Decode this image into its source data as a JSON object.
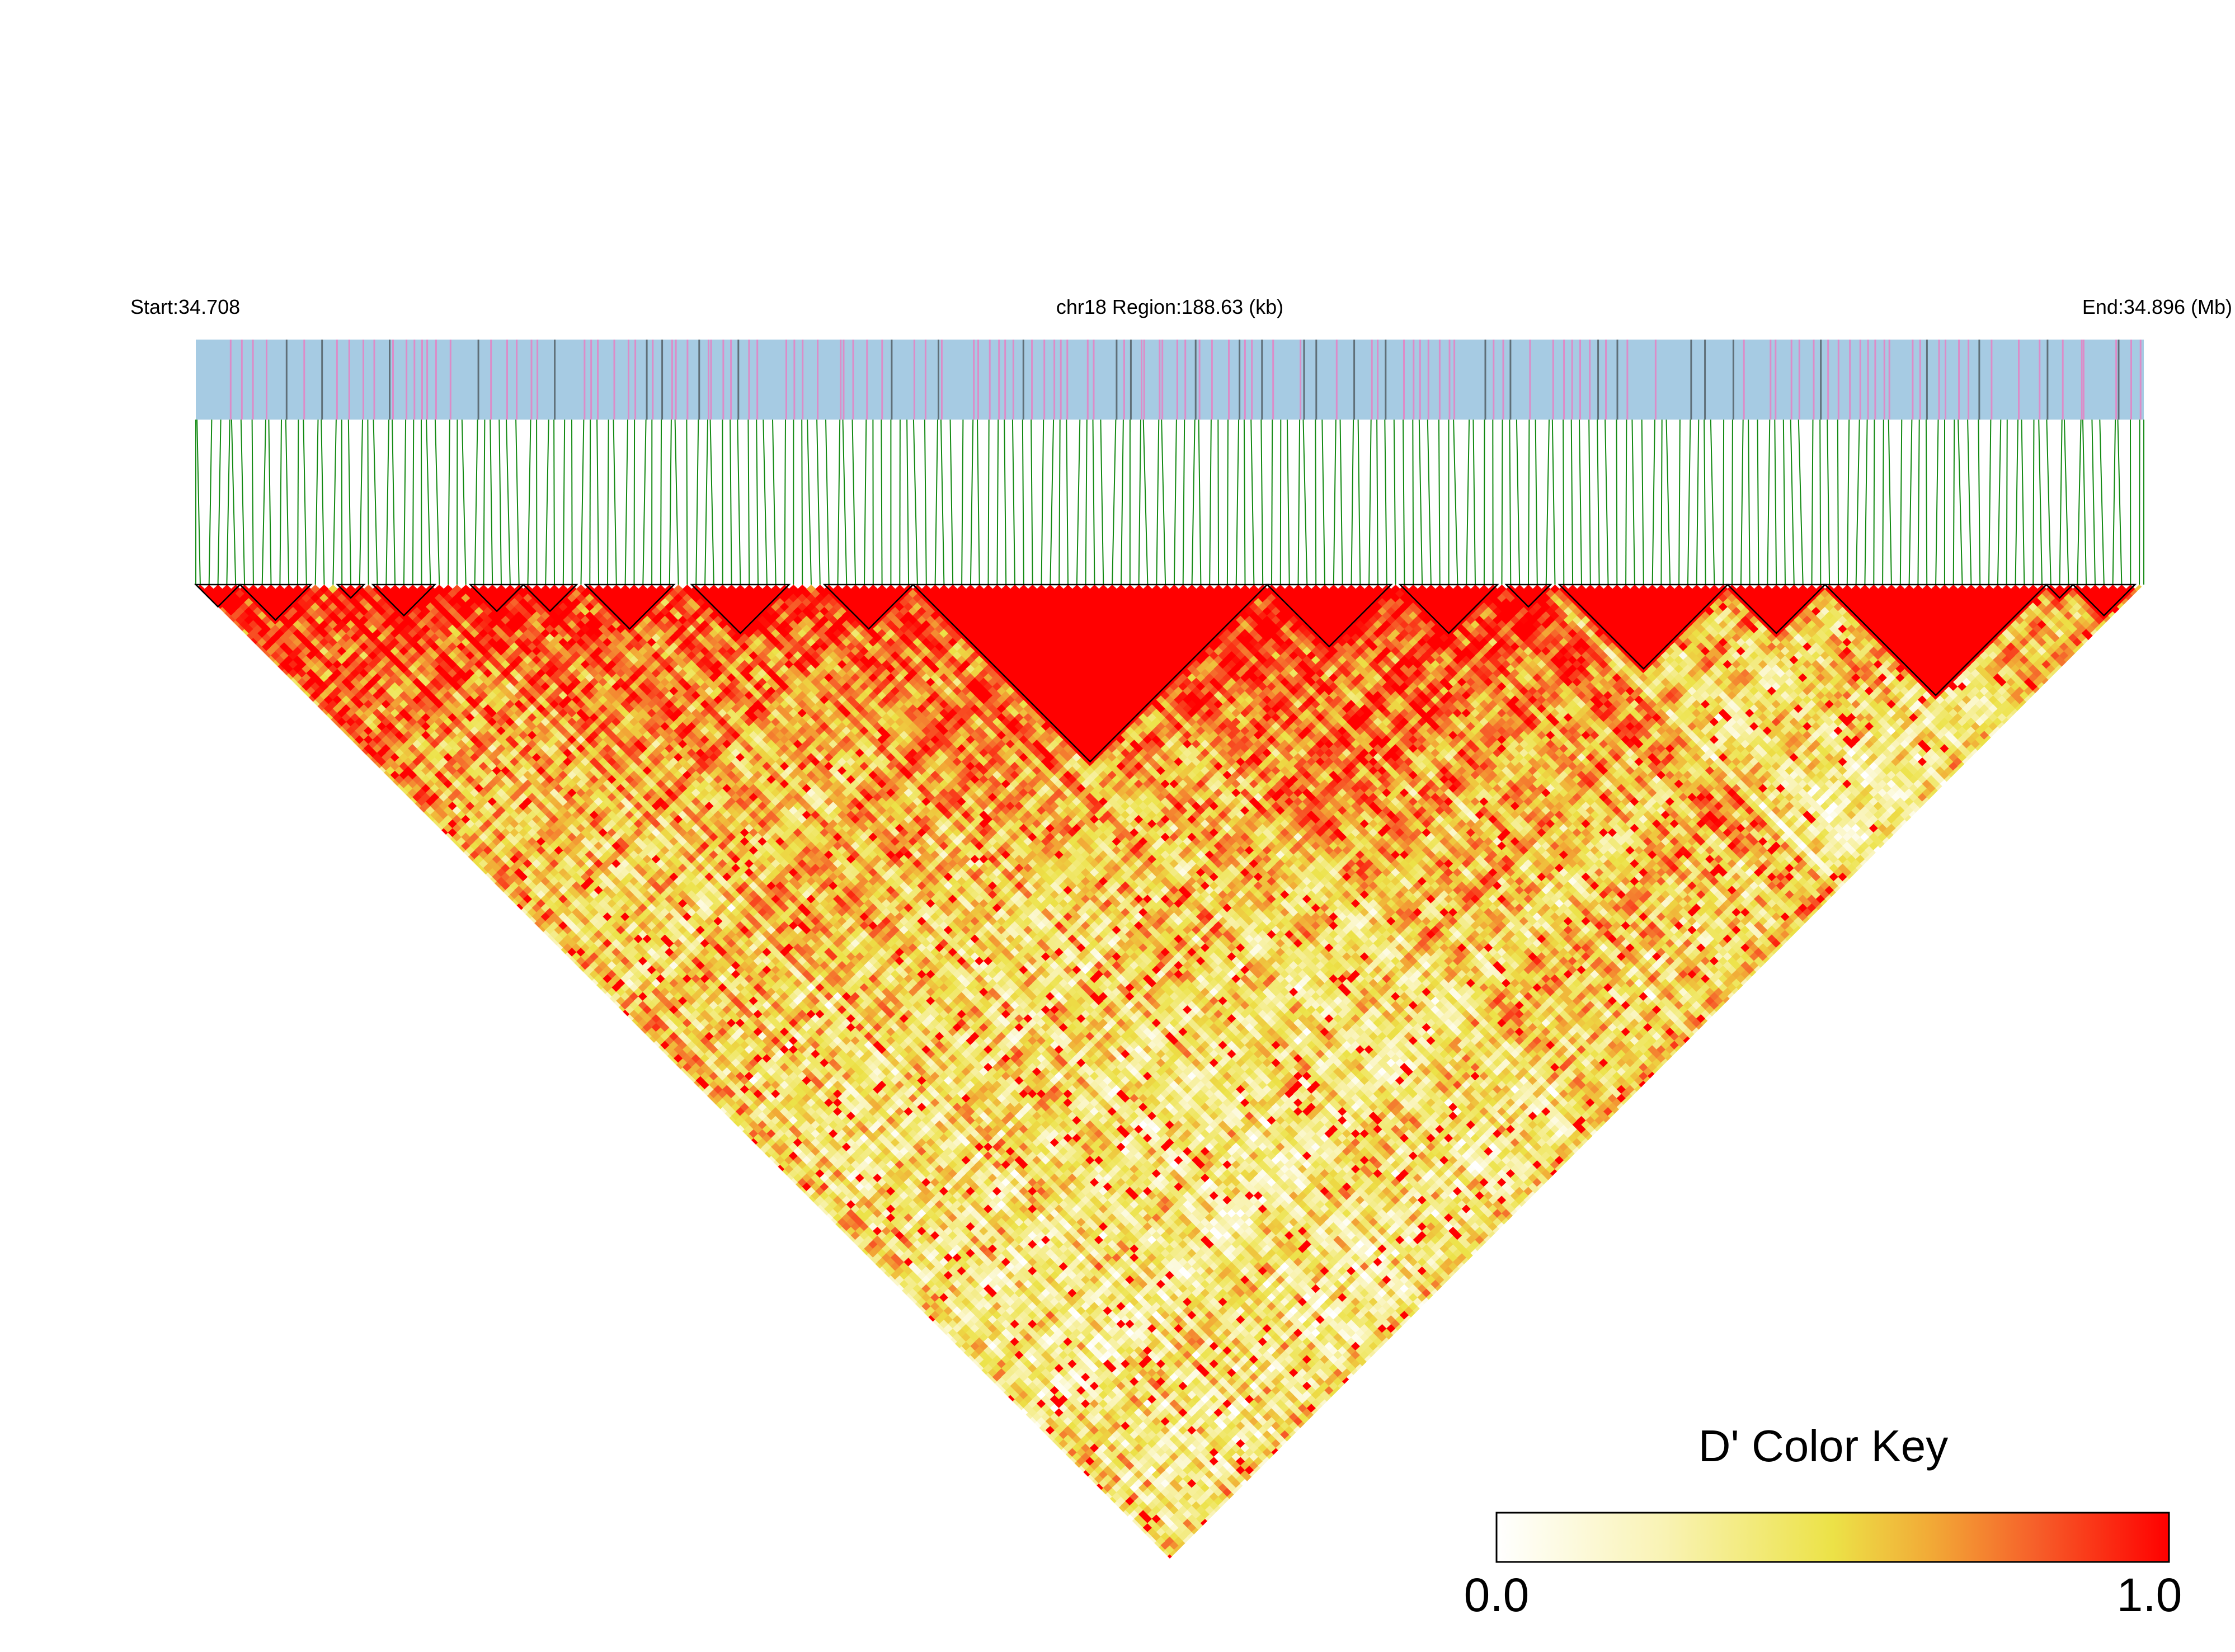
{
  "chart_data": {
    "type": "heatmap",
    "subtype": "ld-triangle",
    "header": {
      "start_label": "Start:34.708",
      "region_label": "chr18 Region:188.63 (kb)",
      "end_label": "End:34.896 (Mb)"
    },
    "chromosome": "chr18",
    "region_start_mb": 34.708,
    "region_end_mb": 34.896,
    "region_length_kb": 188.63,
    "measure": "D'",
    "snp_band_colors": {
      "background": "#a6cbe3",
      "pink": "#dc8cc8",
      "dark": "#5f6f78"
    },
    "connector_color": "#138a13",
    "block_outline_color": "#000000",
    "haplotype_blocks_mb": [
      [
        34.708,
        34.7125
      ],
      [
        34.7125,
        34.7195
      ],
      [
        34.7215,
        34.7245
      ],
      [
        34.7255,
        34.7315
      ],
      [
        34.7345,
        34.7395
      ],
      [
        34.7395,
        34.7445
      ],
      [
        34.7455,
        34.7545
      ],
      [
        34.7555,
        34.7655
      ],
      [
        34.7685,
        34.7775
      ],
      [
        34.7775,
        34.8115
      ],
      [
        34.8115,
        34.8235
      ],
      [
        34.8245,
        34.8335
      ],
      [
        34.8345,
        34.8385
      ],
      [
        34.8395,
        34.8555
      ],
      [
        34.8555,
        34.8655
      ],
      [
        34.8655,
        34.8865
      ],
      [
        34.8865,
        34.8895
      ],
      [
        34.8895,
        34.8955
      ]
    ],
    "color_key": {
      "title": "D' Color Key",
      "min_label": "0.0",
      "max_label": "1.0",
      "range": [
        0.0,
        1.0
      ],
      "stops": [
        {
          "value": 0.0,
          "color": "#ffffff"
        },
        {
          "value": 0.25,
          "color": "#f9f3b4"
        },
        {
          "value": 0.5,
          "color": "#ece247"
        },
        {
          "value": 0.65,
          "color": "#f2a836"
        },
        {
          "value": 0.8,
          "color": "#f6602a"
        },
        {
          "value": 1.0,
          "color": "#ff0000"
        }
      ]
    }
  }
}
